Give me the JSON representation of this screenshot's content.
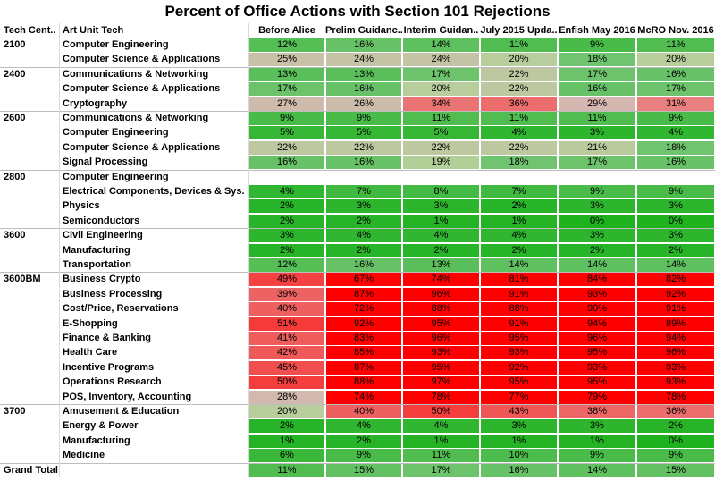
{
  "chart_data": {
    "type": "heatmap",
    "title": "Percent of Office Actions with Section 101 Rejections",
    "column_headers": [
      "Tech Cent..",
      "Art Unit Tech"
    ],
    "columns": [
      "Before Alice",
      "Prelim Guidanc..",
      "Interim Guidan..",
      "July 2015 Upda..",
      "Enfish May 2016",
      "McRO Nov. 2016"
    ],
    "groups": [
      {
        "tech_center": "2100",
        "rows": [
          {
            "art_unit": "Computer Engineering",
            "values": [
              12,
              16,
              14,
              11,
              9,
              11
            ]
          },
          {
            "art_unit": "Computer Science & Applications",
            "values": [
              25,
              24,
              24,
              20,
              18,
              20
            ]
          }
        ]
      },
      {
        "tech_center": "2400",
        "rows": [
          {
            "art_unit": "Communications & Networking",
            "values": [
              13,
              13,
              17,
              22,
              17,
              16
            ]
          },
          {
            "art_unit": "Computer Science & Applications",
            "values": [
              17,
              16,
              20,
              22,
              16,
              17
            ]
          },
          {
            "art_unit": "Cryptography",
            "values": [
              27,
              26,
              34,
              36,
              29,
              31
            ]
          }
        ]
      },
      {
        "tech_center": "2600",
        "rows": [
          {
            "art_unit": "Communications & Networking",
            "values": [
              9,
              9,
              11,
              11,
              11,
              9
            ]
          },
          {
            "art_unit": "Computer Engineering",
            "values": [
              5,
              5,
              5,
              4,
              3,
              4
            ]
          },
          {
            "art_unit": "Computer Science & Applications",
            "values": [
              22,
              22,
              22,
              22,
              21,
              18
            ]
          },
          {
            "art_unit": "Signal Processing",
            "values": [
              16,
              16,
              19,
              18,
              17,
              16
            ]
          }
        ]
      },
      {
        "tech_center": "2800",
        "rows": [
          {
            "art_unit": "Computer Engineering",
            "values": [
              null,
              null,
              null,
              null,
              null,
              null
            ]
          },
          {
            "art_unit": "Electrical Components, Devices & Sys..",
            "values": [
              4,
              7,
              8,
              7,
              9,
              9
            ]
          },
          {
            "art_unit": "Physics",
            "values": [
              2,
              3,
              3,
              2,
              3,
              3
            ]
          },
          {
            "art_unit": "Semiconductors",
            "values": [
              2,
              2,
              1,
              1,
              0,
              0
            ]
          }
        ]
      },
      {
        "tech_center": "3600",
        "rows": [
          {
            "art_unit": "Civil Engineering",
            "values": [
              3,
              4,
              4,
              4,
              3,
              3
            ]
          },
          {
            "art_unit": "Manufacturing",
            "values": [
              2,
              2,
              2,
              2,
              2,
              2
            ]
          },
          {
            "art_unit": "Transportation",
            "values": [
              12,
              16,
              13,
              14,
              14,
              14
            ]
          }
        ]
      },
      {
        "tech_center": "3600BM",
        "rows": [
          {
            "art_unit": "Business Crypto",
            "values": [
              49,
              67,
              74,
              81,
              84,
              82
            ]
          },
          {
            "art_unit": "Business Processing",
            "values": [
              39,
              87,
              96,
              91,
              93,
              92
            ]
          },
          {
            "art_unit": "Cost/Price, Reservations",
            "values": [
              40,
              72,
              88,
              88,
              90,
              91
            ]
          },
          {
            "art_unit": "E-Shopping",
            "values": [
              51,
              92,
              95,
              91,
              94,
              89
            ]
          },
          {
            "art_unit": "Finance & Banking",
            "values": [
              41,
              83,
              96,
              95,
              96,
              94
            ]
          },
          {
            "art_unit": "Health Care",
            "values": [
              42,
              85,
              93,
              93,
              95,
              96
            ]
          },
          {
            "art_unit": "Incentive Programs",
            "values": [
              45,
              87,
              95,
              92,
              93,
              93
            ]
          },
          {
            "art_unit": "Operations Research",
            "values": [
              50,
              88,
              97,
              95,
              95,
              93
            ]
          },
          {
            "art_unit": "POS, Inventory, Accounting",
            "values": [
              28,
              74,
              78,
              77,
              79,
              78
            ]
          }
        ]
      },
      {
        "tech_center": "3700",
        "rows": [
          {
            "art_unit": "Amusement & Education",
            "values": [
              20,
              40,
              50,
              43,
              38,
              36
            ]
          },
          {
            "art_unit": "Energy  & Power",
            "values": [
              2,
              4,
              4,
              3,
              3,
              2
            ]
          },
          {
            "art_unit": "Manufacturing",
            "values": [
              1,
              2,
              1,
              1,
              1,
              0
            ]
          },
          {
            "art_unit": "Medicine",
            "values": [
              6,
              9,
              11,
              10,
              9,
              9
            ]
          }
        ]
      }
    ],
    "grand_total": {
      "label": "Grand Total",
      "values": [
        11,
        15,
        17,
        16,
        14,
        15
      ]
    },
    "value_format": "percent",
    "colors": {
      "low": "#1fb21f",
      "mid": "#d9b3b3",
      "high": "#ff0000"
    }
  }
}
